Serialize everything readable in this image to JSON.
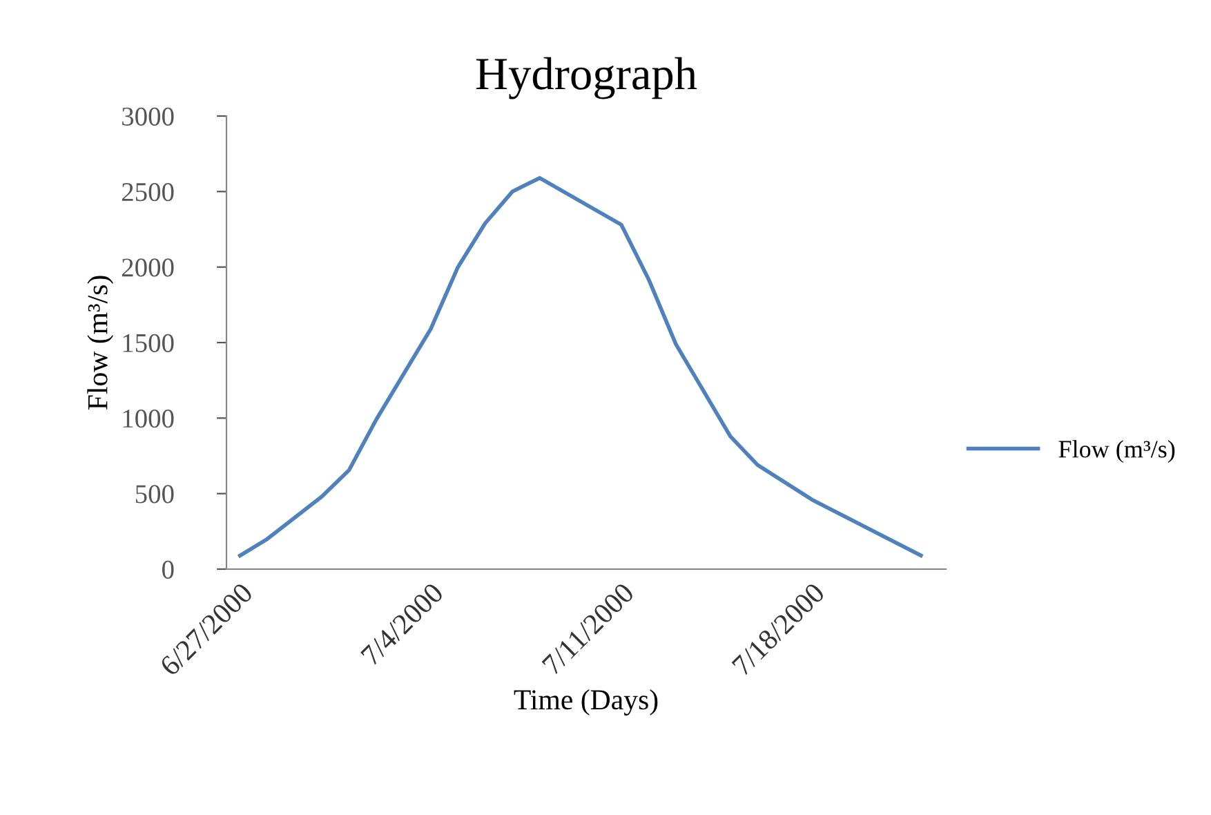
{
  "chart_data": {
    "type": "line",
    "title": "Hydrograph",
    "xlabel": "Time (Days)",
    "ylabel": "Flow (m³/s)",
    "x": [
      "2000-06-27",
      "2000-06-28",
      "2000-06-30",
      "2000-07-01",
      "2000-07-02",
      "2000-07-04",
      "2000-07-05",
      "2000-07-06",
      "2000-07-07",
      "2000-07-08",
      "2000-07-11",
      "2000-07-12",
      "2000-07-13",
      "2000-07-15",
      "2000-07-16",
      "2000-07-18",
      "2000-07-22"
    ],
    "series": [
      {
        "name": "Flow (m³/s)",
        "color": "#4f81bd",
        "values": [
          90,
          200,
          480,
          655,
          990,
          1590,
          2000,
          2290,
          2500,
          2590,
          2280,
          1920,
          1490,
          880,
          690,
          460,
          90
        ]
      }
    ],
    "xlim": [
      "2000-06-26T12:00",
      "2000-07-22T22:00"
    ],
    "xticks": [
      {
        "value": "2000-06-27",
        "label": "6/27/2000"
      },
      {
        "value": "2000-07-04",
        "label": "7/4/2000"
      },
      {
        "value": "2000-07-11",
        "label": "7/11/2000"
      },
      {
        "value": "2000-07-18",
        "label": "7/18/2000"
      }
    ],
    "ylim": [
      0,
      3000
    ],
    "yticks": [
      0,
      500,
      1000,
      1500,
      2000,
      2500,
      3000
    ],
    "grid": false,
    "legend": "right",
    "marker": "none",
    "line_style": "solid"
  }
}
